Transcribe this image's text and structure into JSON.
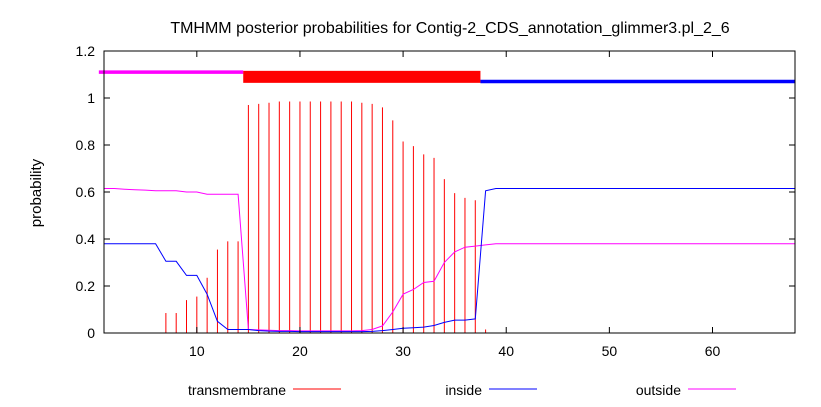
{
  "chart_data": {
    "type": "line",
    "title": "TMHMM posterior probabilities for Contig-2_CDS_annotation_glimmer3.pl_2_6",
    "xlabel": "",
    "ylabel": "probability",
    "xlim": [
      1,
      68
    ],
    "ylim": [
      0,
      1.2
    ],
    "x_ticks": [
      10,
      20,
      30,
      40,
      50,
      60
    ],
    "y_ticks": [
      0,
      0.2,
      0.4,
      0.6,
      0.8,
      1,
      1.2
    ],
    "grid": false,
    "legend_position": "bottom",
    "colors": {
      "transmembrane": "#ff0000",
      "inside": "#0000ff",
      "outside": "#ff00ff",
      "axis": "#000000"
    },
    "topology": [
      {
        "region": "outside",
        "start": 1,
        "end": 14,
        "level": 1.11
      },
      {
        "region": "transmembrane",
        "start": 15,
        "end": 37,
        "level": 1.09
      },
      {
        "region": "inside",
        "start": 38,
        "end": 68,
        "level": 1.07
      }
    ],
    "series": [
      {
        "name": "transmembrane",
        "style": "impulses",
        "x": [
          1,
          2,
          3,
          4,
          5,
          6,
          7,
          8,
          9,
          10,
          11,
          12,
          13,
          14,
          15,
          16,
          17,
          18,
          19,
          20,
          21,
          22,
          23,
          24,
          25,
          26,
          27,
          28,
          29,
          30,
          31,
          32,
          33,
          34,
          35,
          36,
          37,
          38,
          39,
          40,
          41,
          42,
          43,
          44,
          45,
          46,
          47,
          48,
          49,
          50,
          51,
          52,
          53,
          54,
          55,
          56,
          57,
          58,
          59,
          60,
          61,
          62,
          63,
          64,
          65,
          66,
          67,
          68
        ],
        "values": [
          0,
          0,
          0,
          0,
          0,
          0,
          0.085,
          0.085,
          0.14,
          0.155,
          0.235,
          0.355,
          0.39,
          0.39,
          0.97,
          0.975,
          0.98,
          0.985,
          0.985,
          0.985,
          0.985,
          0.985,
          0.985,
          0.985,
          0.985,
          0.98,
          0.975,
          0.96,
          0.905,
          0.815,
          0.795,
          0.76,
          0.745,
          0.655,
          0.595,
          0.575,
          0.565,
          0.015,
          0,
          0,
          0,
          0,
          0,
          0,
          0,
          0,
          0,
          0,
          0,
          0,
          0,
          0,
          0,
          0,
          0,
          0,
          0,
          0,
          0,
          0,
          0,
          0,
          0,
          0,
          0,
          0,
          0,
          0
        ]
      },
      {
        "name": "inside",
        "style": "line",
        "x": [
          1,
          2,
          3,
          4,
          5,
          6,
          7,
          8,
          9,
          10,
          11,
          12,
          13,
          14,
          15,
          16,
          17,
          18,
          19,
          20,
          21,
          22,
          23,
          24,
          25,
          26,
          27,
          28,
          29,
          30,
          31,
          32,
          33,
          34,
          35,
          36,
          37,
          38,
          39,
          40,
          41,
          42,
          43,
          44,
          45,
          46,
          47,
          48,
          49,
          50,
          51,
          52,
          53,
          54,
          55,
          56,
          57,
          58,
          59,
          60,
          61,
          62,
          63,
          64,
          65,
          66,
          67,
          68
        ],
        "values": [
          0.38,
          0.38,
          0.38,
          0.38,
          0.38,
          0.38,
          0.305,
          0.305,
          0.245,
          0.245,
          0.165,
          0.05,
          0.015,
          0.015,
          0.015,
          0.01,
          0.008,
          0.007,
          0.007,
          0.006,
          0.006,
          0.006,
          0.006,
          0.006,
          0.006,
          0.006,
          0.007,
          0.01,
          0.015,
          0.02,
          0.022,
          0.025,
          0.032,
          0.045,
          0.055,
          0.055,
          0.06,
          0.605,
          0.615,
          0.615,
          0.615,
          0.615,
          0.615,
          0.615,
          0.615,
          0.615,
          0.615,
          0.615,
          0.615,
          0.615,
          0.615,
          0.615,
          0.615,
          0.615,
          0.615,
          0.615,
          0.615,
          0.615,
          0.615,
          0.615,
          0.615,
          0.615,
          0.615,
          0.615,
          0.615,
          0.615,
          0.615,
          0.615
        ]
      },
      {
        "name": "outside",
        "style": "line",
        "x": [
          1,
          2,
          3,
          4,
          5,
          6,
          7,
          8,
          9,
          10,
          11,
          12,
          13,
          14,
          15,
          16,
          17,
          18,
          19,
          20,
          21,
          22,
          23,
          24,
          25,
          26,
          27,
          28,
          29,
          30,
          31,
          32,
          33,
          34,
          35,
          36,
          37,
          38,
          39,
          40,
          41,
          42,
          43,
          44,
          45,
          46,
          47,
          48,
          49,
          50,
          51,
          52,
          53,
          54,
          55,
          56,
          57,
          58,
          59,
          60,
          61,
          62,
          63,
          64,
          65,
          66,
          67,
          68
        ],
        "values": [
          0.615,
          0.615,
          0.612,
          0.61,
          0.608,
          0.605,
          0.605,
          0.605,
          0.6,
          0.6,
          0.59,
          0.59,
          0.59,
          0.59,
          0.015,
          0.013,
          0.012,
          0.01,
          0.01,
          0.009,
          0.009,
          0.009,
          0.009,
          0.009,
          0.009,
          0.01,
          0.015,
          0.03,
          0.09,
          0.165,
          0.185,
          0.215,
          0.22,
          0.3,
          0.345,
          0.365,
          0.37,
          0.375,
          0.38,
          0.38,
          0.38,
          0.38,
          0.38,
          0.38,
          0.38,
          0.38,
          0.38,
          0.38,
          0.38,
          0.38,
          0.38,
          0.38,
          0.38,
          0.38,
          0.38,
          0.38,
          0.38,
          0.38,
          0.38,
          0.38,
          0.38,
          0.38,
          0.38,
          0.38,
          0.38,
          0.38,
          0.38,
          0.38
        ]
      }
    ]
  }
}
